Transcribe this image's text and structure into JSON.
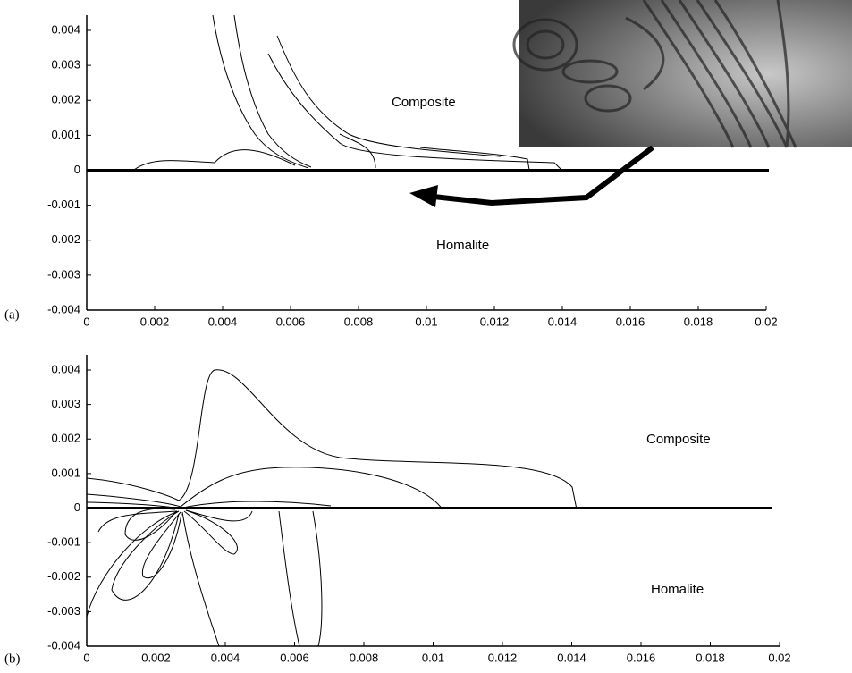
{
  "chart_data": [
    {
      "type": "contour",
      "panel_label": "(a)",
      "annotations": [
        "Composite",
        "Homalite"
      ],
      "xlim": [
        0,
        0.02
      ],
      "ylim": [
        -0.004,
        0.004
      ],
      "xticks": [
        0,
        0.002,
        0.004,
        0.006,
        0.008,
        0.01,
        0.012,
        0.014,
        0.016,
        0.018,
        0.02
      ],
      "yticks": [
        -0.004,
        -0.003,
        -0.002,
        -0.001,
        0,
        0.001,
        0.002,
        0.003,
        0.004
      ]
    },
    {
      "type": "contour",
      "panel_label": "(b)",
      "annotations": [
        "Composite",
        "Homalite"
      ],
      "xlim": [
        0,
        0.02
      ],
      "ylim": [
        -0.004,
        0.004
      ],
      "xticks": [
        0,
        0.002,
        0.004,
        0.006,
        0.008,
        0.01,
        0.012,
        0.014,
        0.016,
        0.018,
        0.02
      ],
      "yticks": [
        -0.004,
        -0.003,
        -0.002,
        -0.001,
        0,
        0.001,
        0.002,
        0.003,
        0.004
      ]
    }
  ]
}
